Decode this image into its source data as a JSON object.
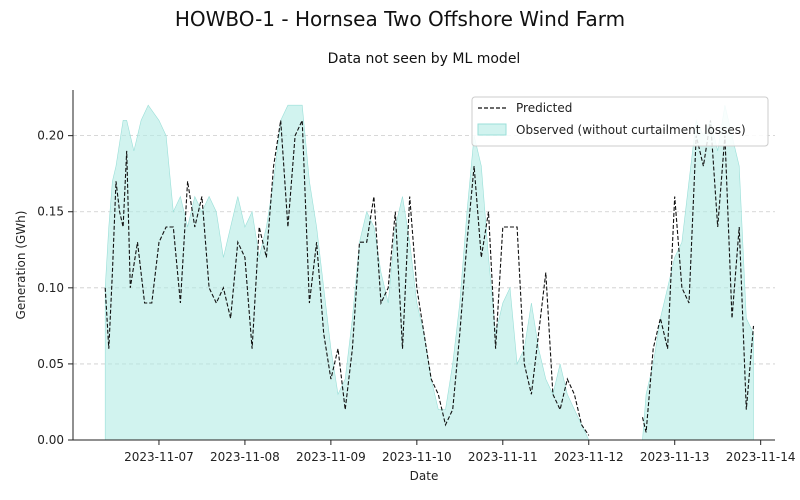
{
  "chart_data": {
    "type": "area",
    "title": "HOWBO-1 - Hornsea Two Offshore Wind Farm",
    "subtitle": "Data not seen by ML model",
    "xlabel": "Date",
    "ylabel": "Generation (GWh)",
    "xlim": [
      "2023-11-06T00:00",
      "2023-11-14T04:00"
    ],
    "ylim": [
      0,
      0.23
    ],
    "x_ticks": [
      "2023-11-07",
      "2023-11-08",
      "2023-11-09",
      "2023-11-10",
      "2023-11-11",
      "2023-11-12",
      "2023-11-13",
      "2023-11-14"
    ],
    "y_ticks": [
      0.0,
      0.05,
      0.1,
      0.15,
      0.2
    ],
    "y_tick_labels": [
      "0.00",
      "0.05",
      "0.10",
      "0.15",
      "0.20"
    ],
    "grid": "y-dashed",
    "legend_position": "top-right",
    "series": [
      {
        "name": "Observed (without curtailment losses)",
        "style": "filled-area",
        "color": "#b2ebe5",
        "points": [
          [
            "2023-11-06T09:00",
            0.0
          ],
          [
            "2023-11-06T09:00",
            0.1
          ],
          [
            "2023-11-06T10:00",
            0.14
          ],
          [
            "2023-11-06T11:00",
            0.17
          ],
          [
            "2023-11-06T12:00",
            0.18
          ],
          [
            "2023-11-06T14:00",
            0.21
          ],
          [
            "2023-11-06T15:00",
            0.21
          ],
          [
            "2023-11-06T17:00",
            0.19
          ],
          [
            "2023-11-06T19:00",
            0.21
          ],
          [
            "2023-11-06T21:00",
            0.22
          ],
          [
            "2023-11-07T00:00",
            0.21
          ],
          [
            "2023-11-07T02:00",
            0.2
          ],
          [
            "2023-11-07T04:00",
            0.15
          ],
          [
            "2023-11-07T06:00",
            0.16
          ],
          [
            "2023-11-07T08:00",
            0.14
          ],
          [
            "2023-11-07T10:00",
            0.16
          ],
          [
            "2023-11-07T12:00",
            0.15
          ],
          [
            "2023-11-07T14:00",
            0.16
          ],
          [
            "2023-11-07T16:00",
            0.15
          ],
          [
            "2023-11-07T18:00",
            0.12
          ],
          [
            "2023-11-07T20:00",
            0.14
          ],
          [
            "2023-11-07T22:00",
            0.16
          ],
          [
            "2023-11-08T00:00",
            0.14
          ],
          [
            "2023-11-08T02:00",
            0.15
          ],
          [
            "2023-11-08T04:00",
            0.12
          ],
          [
            "2023-11-08T06:00",
            0.14
          ],
          [
            "2023-11-08T08:00",
            0.17
          ],
          [
            "2023-11-08T10:00",
            0.21
          ],
          [
            "2023-11-08T12:00",
            0.22
          ],
          [
            "2023-11-08T16:00",
            0.22
          ],
          [
            "2023-11-08T18:00",
            0.17
          ],
          [
            "2023-11-08T20:00",
            0.14
          ],
          [
            "2023-11-08T22:00",
            0.1
          ],
          [
            "2023-11-09T00:00",
            0.06
          ],
          [
            "2023-11-09T02:00",
            0.03
          ],
          [
            "2023-11-09T04:00",
            0.04
          ],
          [
            "2023-11-09T06:00",
            0.08
          ],
          [
            "2023-11-09T08:00",
            0.13
          ],
          [
            "2023-11-09T10:00",
            0.15
          ],
          [
            "2023-11-09T12:00",
            0.14
          ],
          [
            "2023-11-09T14:00",
            0.11
          ],
          [
            "2023-11-09T16:00",
            0.09
          ],
          [
            "2023-11-09T18:00",
            0.14
          ],
          [
            "2023-11-09T20:00",
            0.16
          ],
          [
            "2023-11-09T22:00",
            0.13
          ],
          [
            "2023-11-10T00:00",
            0.09
          ],
          [
            "2023-11-10T02:00",
            0.07
          ],
          [
            "2023-11-10T04:00",
            0.04
          ],
          [
            "2023-11-10T06:00",
            0.02
          ],
          [
            "2023-11-10T08:00",
            0.02
          ],
          [
            "2023-11-10T10:00",
            0.05
          ],
          [
            "2023-11-10T12:00",
            0.09
          ],
          [
            "2023-11-10T14:00",
            0.15
          ],
          [
            "2023-11-10T16:00",
            0.2
          ],
          [
            "2023-11-10T18:00",
            0.18
          ],
          [
            "2023-11-10T20:00",
            0.12
          ],
          [
            "2023-11-10T22:00",
            0.07
          ],
          [
            "2023-11-11T00:00",
            0.09
          ],
          [
            "2023-11-11T02:00",
            0.1
          ],
          [
            "2023-11-11T04:00",
            0.05
          ],
          [
            "2023-11-11T06:00",
            0.06
          ],
          [
            "2023-11-11T08:00",
            0.09
          ],
          [
            "2023-11-11T10:00",
            0.06
          ],
          [
            "2023-11-11T12:00",
            0.04
          ],
          [
            "2023-11-11T14:00",
            0.03
          ],
          [
            "2023-11-11T16:00",
            0.05
          ],
          [
            "2023-11-11T18:00",
            0.03
          ],
          [
            "2023-11-11T20:00",
            0.02
          ],
          [
            "2023-11-11T22:00",
            0.01
          ],
          [
            "2023-11-12T00:00",
            0.0
          ],
          [
            "2023-11-12T15:00",
            0.0
          ],
          [
            "2023-11-12T16:00",
            0.03
          ],
          [
            "2023-11-12T18:00",
            0.05
          ],
          [
            "2023-11-12T20:00",
            0.08
          ],
          [
            "2023-11-12T22:00",
            0.1
          ],
          [
            "2023-11-13T00:00",
            0.12
          ],
          [
            "2023-11-13T02:00",
            0.13
          ],
          [
            "2023-11-13T04:00",
            0.17
          ],
          [
            "2023-11-13T06:00",
            0.21
          ],
          [
            "2023-11-13T08:00",
            0.2
          ],
          [
            "2023-11-13T10:00",
            0.21
          ],
          [
            "2023-11-13T12:00",
            0.19
          ],
          [
            "2023-11-13T14:00",
            0.22
          ],
          [
            "2023-11-13T16:00",
            0.2
          ],
          [
            "2023-11-13T18:00",
            0.18
          ],
          [
            "2023-11-13T20:00",
            0.08
          ],
          [
            "2023-11-13T22:00",
            0.07
          ],
          [
            "2023-11-13T22:00",
            0.0
          ]
        ]
      },
      {
        "name": "Predicted",
        "style": "dashed-line",
        "color": "#111111",
        "points": [
          [
            "2023-11-06T09:00",
            0.1
          ],
          [
            "2023-11-06T10:00",
            0.06
          ],
          [
            "2023-11-06T11:00",
            0.11
          ],
          [
            "2023-11-06T12:00",
            0.17
          ],
          [
            "2023-11-06T13:00",
            0.15
          ],
          [
            "2023-11-06T14:00",
            0.14
          ],
          [
            "2023-11-06T15:00",
            0.19
          ],
          [
            "2023-11-06T16:00",
            0.1
          ],
          [
            "2023-11-06T18:00",
            0.13
          ],
          [
            "2023-11-06T20:00",
            0.09
          ],
          [
            "2023-11-06T22:00",
            0.09
          ],
          [
            "2023-11-07T00:00",
            0.13
          ],
          [
            "2023-11-07T02:00",
            0.14
          ],
          [
            "2023-11-07T04:00",
            0.14
          ],
          [
            "2023-11-07T06:00",
            0.09
          ],
          [
            "2023-11-07T08:00",
            0.17
          ],
          [
            "2023-11-07T10:00",
            0.14
          ],
          [
            "2023-11-07T12:00",
            0.16
          ],
          [
            "2023-11-07T14:00",
            0.1
          ],
          [
            "2023-11-07T16:00",
            0.09
          ],
          [
            "2023-11-07T18:00",
            0.1
          ],
          [
            "2023-11-07T20:00",
            0.08
          ],
          [
            "2023-11-07T22:00",
            0.13
          ],
          [
            "2023-11-08T00:00",
            0.12
          ],
          [
            "2023-11-08T02:00",
            0.06
          ],
          [
            "2023-11-08T04:00",
            0.14
          ],
          [
            "2023-11-08T06:00",
            0.12
          ],
          [
            "2023-11-08T08:00",
            0.18
          ],
          [
            "2023-11-08T10:00",
            0.21
          ],
          [
            "2023-11-08T12:00",
            0.14
          ],
          [
            "2023-11-08T14:00",
            0.2
          ],
          [
            "2023-11-08T16:00",
            0.21
          ],
          [
            "2023-11-08T18:00",
            0.09
          ],
          [
            "2023-11-08T20:00",
            0.13
          ],
          [
            "2023-11-08T22:00",
            0.07
          ],
          [
            "2023-11-09T00:00",
            0.04
          ],
          [
            "2023-11-09T02:00",
            0.06
          ],
          [
            "2023-11-09T04:00",
            0.02
          ],
          [
            "2023-11-09T06:00",
            0.06
          ],
          [
            "2023-11-09T08:00",
            0.13
          ],
          [
            "2023-11-09T10:00",
            0.13
          ],
          [
            "2023-11-09T12:00",
            0.16
          ],
          [
            "2023-11-09T14:00",
            0.09
          ],
          [
            "2023-11-09T16:00",
            0.1
          ],
          [
            "2023-11-09T18:00",
            0.15
          ],
          [
            "2023-11-09T20:00",
            0.06
          ],
          [
            "2023-11-09T22:00",
            0.16
          ],
          [
            "2023-11-10T00:00",
            0.1
          ],
          [
            "2023-11-10T02:00",
            0.07
          ],
          [
            "2023-11-10T04:00",
            0.04
          ],
          [
            "2023-11-10T06:00",
            0.03
          ],
          [
            "2023-11-10T08:00",
            0.01
          ],
          [
            "2023-11-10T10:00",
            0.02
          ],
          [
            "2023-11-10T12:00",
            0.07
          ],
          [
            "2023-11-10T14:00",
            0.13
          ],
          [
            "2023-11-10T16:00",
            0.18
          ],
          [
            "2023-11-10T18:00",
            0.12
          ],
          [
            "2023-11-10T20:00",
            0.15
          ],
          [
            "2023-11-10T22:00",
            0.06
          ],
          [
            "2023-11-11T00:00",
            0.14
          ],
          [
            "2023-11-11T04:00",
            0.14
          ],
          [
            "2023-11-11T06:00",
            0.05
          ],
          [
            "2023-11-11T08:00",
            0.03
          ],
          [
            "2023-11-11T10:00",
            0.07
          ],
          [
            "2023-11-11T12:00",
            0.11
          ],
          [
            "2023-11-11T14:00",
            0.03
          ],
          [
            "2023-11-11T16:00",
            0.02
          ],
          [
            "2023-11-11T18:00",
            0.04
          ],
          [
            "2023-11-11T20:00",
            0.03
          ],
          [
            "2023-11-11T22:00",
            0.01
          ],
          [
            "2023-11-12T00:00",
            0.003
          ],
          [
            "2023-11-12T15:00",
            0.015
          ],
          [
            "2023-11-12T16:00",
            0.005
          ],
          [
            "2023-11-12T18:00",
            0.06
          ],
          [
            "2023-11-12T20:00",
            0.08
          ],
          [
            "2023-11-12T22:00",
            0.06
          ],
          [
            "2023-11-13T00:00",
            0.16
          ],
          [
            "2023-11-13T02:00",
            0.1
          ],
          [
            "2023-11-13T04:00",
            0.09
          ],
          [
            "2023-11-13T06:00",
            0.2
          ],
          [
            "2023-11-13T08:00",
            0.18
          ],
          [
            "2023-11-13T10:00",
            0.21
          ],
          [
            "2023-11-13T12:00",
            0.14
          ],
          [
            "2023-11-13T14:00",
            0.2
          ],
          [
            "2023-11-13T16:00",
            0.08
          ],
          [
            "2023-11-13T18:00",
            0.14
          ],
          [
            "2023-11-13T20:00",
            0.02
          ],
          [
            "2023-11-13T22:00",
            0.075
          ]
        ]
      }
    ]
  }
}
